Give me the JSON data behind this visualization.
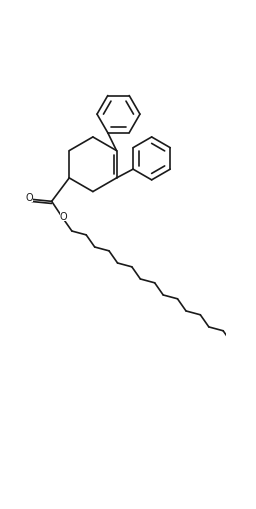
{
  "background": "#ffffff",
  "line_color": "#1a1a1a",
  "line_width": 1.2,
  "fig_width": 2.56,
  "fig_height": 5.1,
  "dpi": 100
}
